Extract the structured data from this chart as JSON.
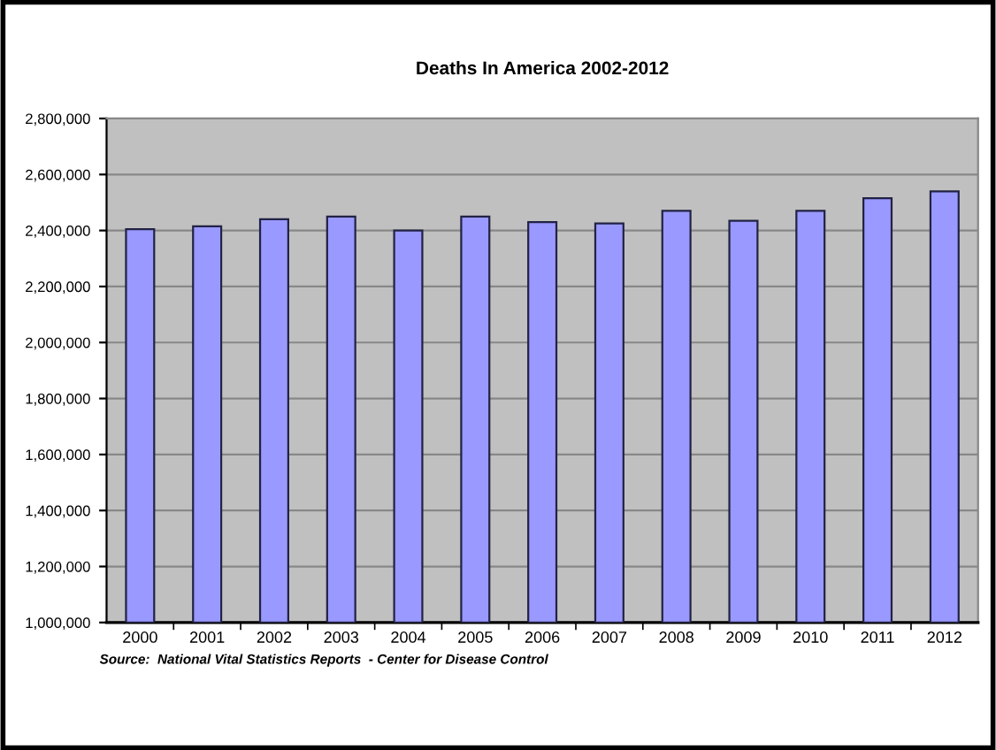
{
  "chart_data": {
    "type": "bar",
    "title": "Deaths In America 2002-2012",
    "categories": [
      "2000",
      "2001",
      "2002",
      "2003",
      "2004",
      "2005",
      "2006",
      "2007",
      "2008",
      "2009",
      "2010",
      "2011",
      "2012"
    ],
    "values": [
      2405000,
      2415000,
      2440000,
      2450000,
      2400000,
      2450000,
      2430000,
      2425000,
      2470000,
      2435000,
      2470000,
      2515000,
      2540000
    ],
    "color": "#9999ff",
    "ylim": [
      1000000,
      2800000
    ],
    "yticks": [
      {
        "value": 1000000,
        "label": "1,000,000"
      },
      {
        "value": 1200000,
        "label": "1,200,000"
      },
      {
        "value": 1400000,
        "label": "1,400,000"
      },
      {
        "value": 1600000,
        "label": "1,600,000"
      },
      {
        "value": 1800000,
        "label": "1,800,000"
      },
      {
        "value": 2000000,
        "label": "2,000,000"
      },
      {
        "value": 2200000,
        "label": "2,200,000"
      },
      {
        "value": 2400000,
        "label": "2,400,000"
      },
      {
        "value": 2600000,
        "label": "2,600,000"
      },
      {
        "value": 2800000,
        "label": "2,800,000"
      }
    ],
    "grid": "y",
    "annotations": [
      "Source:  National Vital Statistics Reports  - Center for Disease Control"
    ]
  }
}
